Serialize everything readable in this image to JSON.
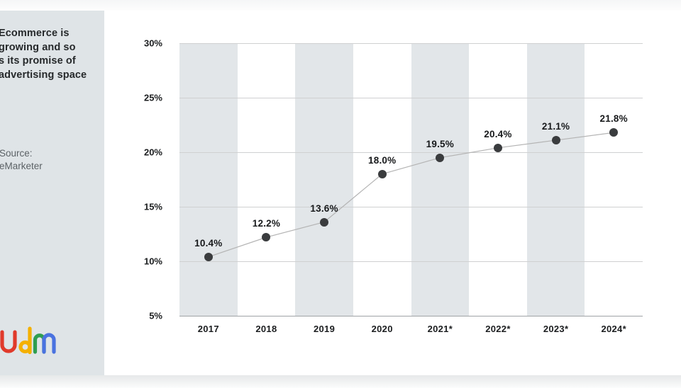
{
  "sidebar": {
    "headline_lines": [
      "Ecommerce is",
      "growing and so",
      "s its promise of",
      "advertising space"
    ],
    "source_lines": [
      "Source:",
      "eMarketer"
    ],
    "logo": {
      "name": "udm-logo",
      "letters": [
        {
          "glyph": "u",
          "color": "#e03a2b"
        },
        {
          "glyph": "d",
          "color": "#f4b000"
        },
        {
          "glyph": "m-first-arch",
          "color": "#2f9e50"
        },
        {
          "glyph": "m-second-arch",
          "color": "#4a72e0"
        }
      ]
    }
  },
  "chart_data": {
    "type": "line",
    "categories": [
      "2017",
      "2018",
      "2019",
      "2020",
      "2021*",
      "2022*",
      "2023*",
      "2024*"
    ],
    "series": [
      {
        "name": "ecommerce-share",
        "values": [
          10.4,
          12.2,
          13.6,
          18.0,
          19.5,
          20.4,
          21.1,
          21.8
        ],
        "labels": [
          "10.4%",
          "12.2%",
          "13.6%",
          "18.0%",
          "19.5%",
          "20.4%",
          "21.1%",
          "21.8%"
        ]
      }
    ],
    "ylim": [
      5,
      30
    ],
    "y_ticks": [
      {
        "label": "30%",
        "value": 30
      },
      {
        "label": "25%",
        "value": 25
      },
      {
        "label": "20%",
        "value": 20
      },
      {
        "label": "15%",
        "value": 15
      },
      {
        "label": "10%",
        "value": 10
      },
      {
        "label": "5%",
        "value": 5
      }
    ],
    "grid": "horizontal",
    "legend": "none",
    "striped_columns": [
      0,
      2,
      4,
      6
    ],
    "colors": {
      "band": "#e2e6e9",
      "gridline": "#cfd0d1",
      "axis_line": "#9fa3a5",
      "line": "#b4b4b4",
      "point": "#3a3c3e",
      "tick_text": "#1b1d1f",
      "label_text": "#17191b"
    }
  }
}
